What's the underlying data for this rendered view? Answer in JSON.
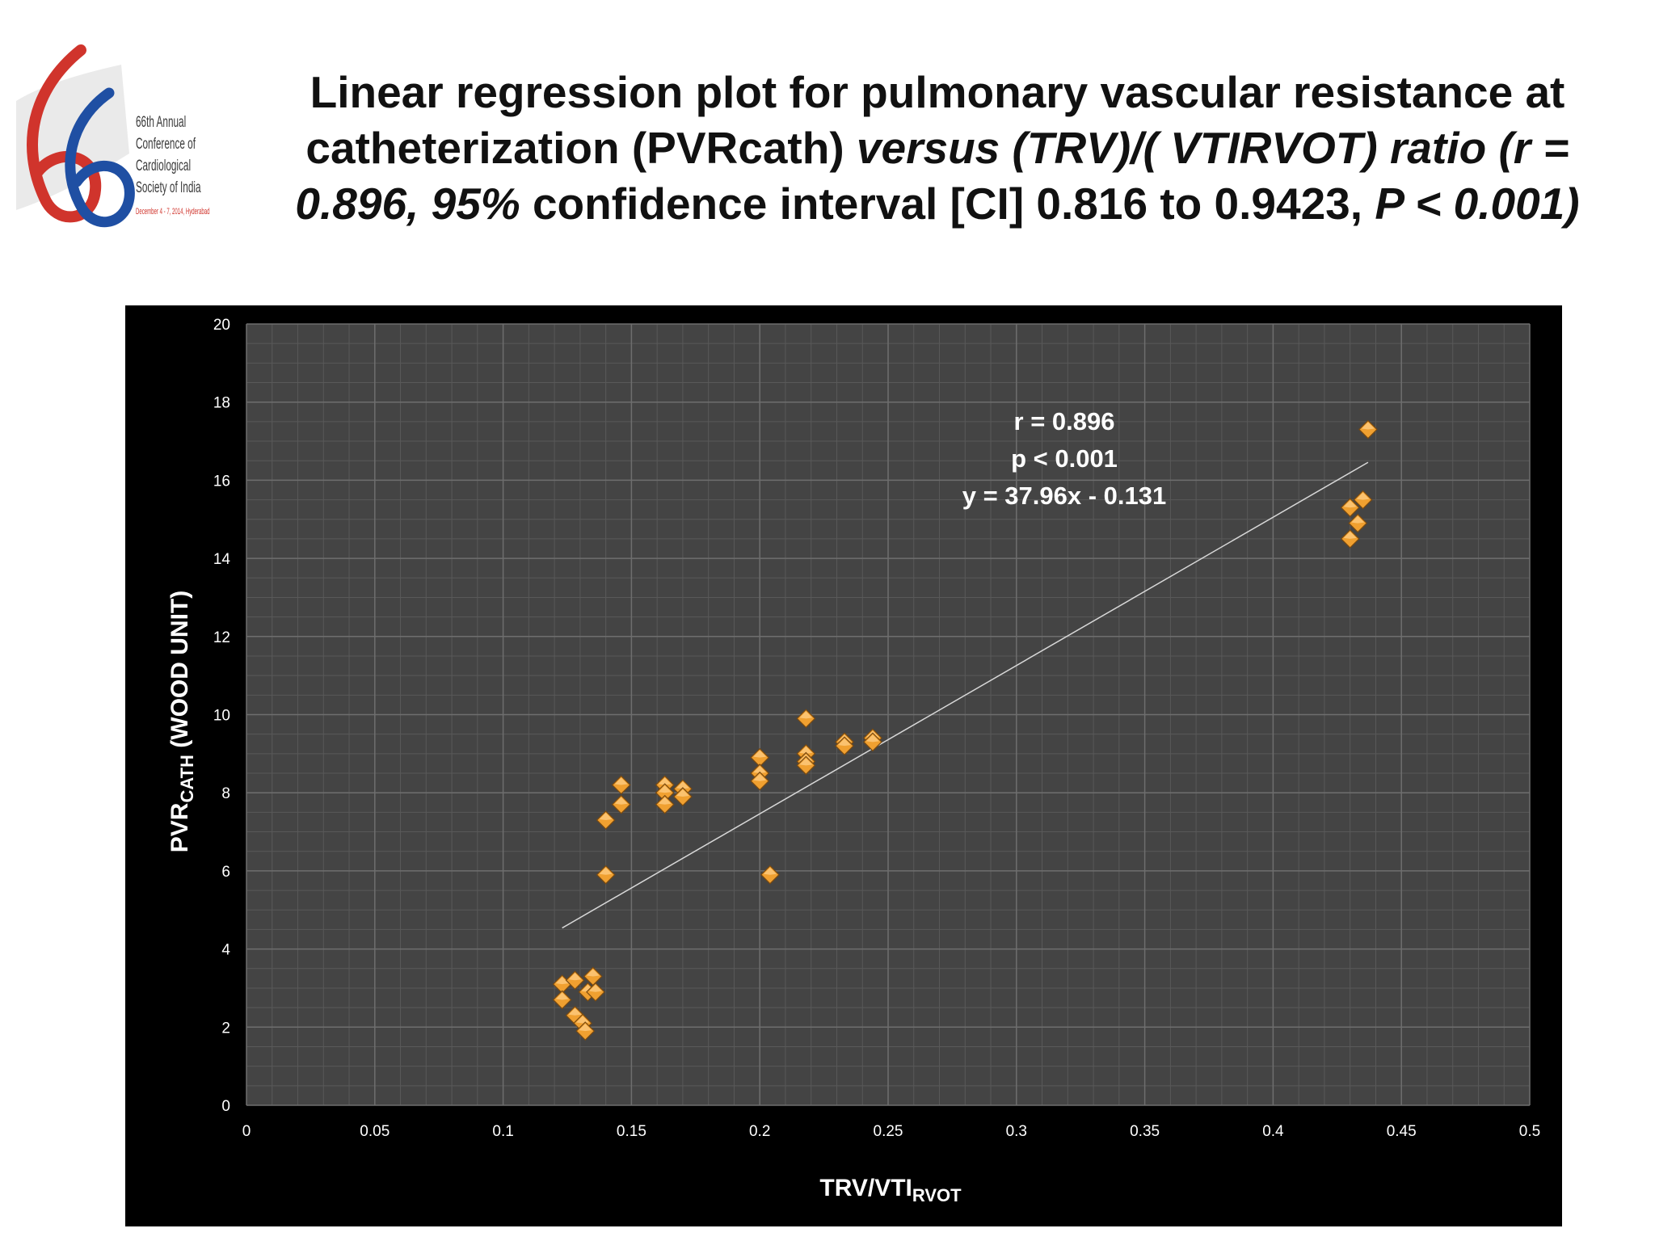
{
  "logo": {
    "lines": [
      "66th Annual",
      "Conference of",
      "Cardiological",
      "Society of India"
    ],
    "dates": "December 4 - 7, 2014, Hyderabad",
    "colors": {
      "red": "#d0342c",
      "blue": "#1f4fa3"
    }
  },
  "title": {
    "part1": "Linear regression plot for pulmonary vascular resistance at catheterization (PVRcath) ",
    "part2": "versus (TRV)/( VTIRVOT) ratio (r = 0.896, 95%",
    "part3": " confidence interval [CI] 0.816 to 0.9423, ",
    "part4": "P < 0.001)"
  },
  "chart_data": {
    "type": "scatter",
    "xlabel_main": "TRV/VTI",
    "xlabel_sub": "RVOT",
    "ylabel_main": "PVR",
    "ylabel_sub": "CATH",
    "ylabel_tail": " (WOOD UNIT)",
    "xlim": [
      0,
      0.5
    ],
    "ylim": [
      0,
      20
    ],
    "xticks": [
      "0",
      "0.05",
      "0.1",
      "0.15",
      "0.2",
      "0.25",
      "0.3",
      "0.35",
      "0.4",
      "0.45",
      "0.5"
    ],
    "yticks": [
      "0",
      "2",
      "4",
      "6",
      "8",
      "10",
      "12",
      "14",
      "16",
      "18",
      "20"
    ],
    "grid": true,
    "annotations": [
      "r = 0.896",
      "p < 0.001",
      "y = 37.96x - 0.131"
    ],
    "trendline": {
      "x": [
        0.123,
        0.437
      ],
      "slope": 37.96,
      "intercept": -0.131
    },
    "marker_color": "#f0a030",
    "points": [
      [
        0.123,
        3.1
      ],
      [
        0.123,
        2.7
      ],
      [
        0.128,
        3.2
      ],
      [
        0.128,
        2.3
      ],
      [
        0.131,
        2.1
      ],
      [
        0.132,
        1.9
      ],
      [
        0.133,
        2.9
      ],
      [
        0.135,
        3.3
      ],
      [
        0.136,
        2.9
      ],
      [
        0.14,
        7.3
      ],
      [
        0.14,
        5.9
      ],
      [
        0.146,
        8.2
      ],
      [
        0.146,
        7.7
      ],
      [
        0.163,
        8.2
      ],
      [
        0.163,
        8.0
      ],
      [
        0.163,
        7.7
      ],
      [
        0.17,
        8.1
      ],
      [
        0.17,
        7.9
      ],
      [
        0.2,
        8.9
      ],
      [
        0.2,
        8.5
      ],
      [
        0.2,
        8.3
      ],
      [
        0.204,
        5.9
      ],
      [
        0.218,
        9.9
      ],
      [
        0.218,
        9.0
      ],
      [
        0.218,
        8.8
      ],
      [
        0.218,
        8.7
      ],
      [
        0.233,
        9.3
      ],
      [
        0.233,
        9.2
      ],
      [
        0.244,
        9.4
      ],
      [
        0.244,
        9.3
      ],
      [
        0.43,
        14.5
      ],
      [
        0.43,
        15.3
      ],
      [
        0.433,
        14.9
      ],
      [
        0.435,
        15.5
      ],
      [
        0.437,
        17.3
      ]
    ]
  }
}
